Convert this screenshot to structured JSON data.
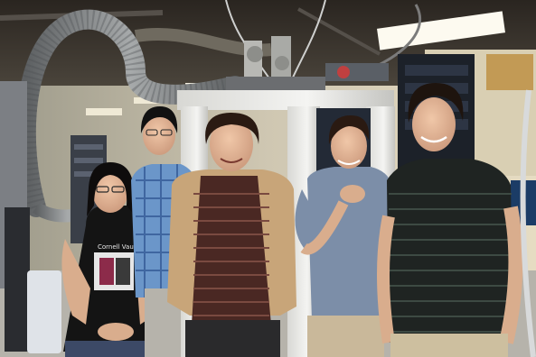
{
  "photo": {
    "people": [
      "person-1",
      "person-2",
      "person-3",
      "person-4",
      "person-5"
    ],
    "tshirt_text": "Cornell Vault",
    "colors": {
      "ceiling": "#3b3630",
      "wall": "#cbc3ae",
      "floor": "#b9b6ae",
      "frame": "#eeeeec",
      "hose": "#8a8d8e",
      "rack": "#1c2129",
      "lab_light": "#fdfaf0"
    }
  }
}
